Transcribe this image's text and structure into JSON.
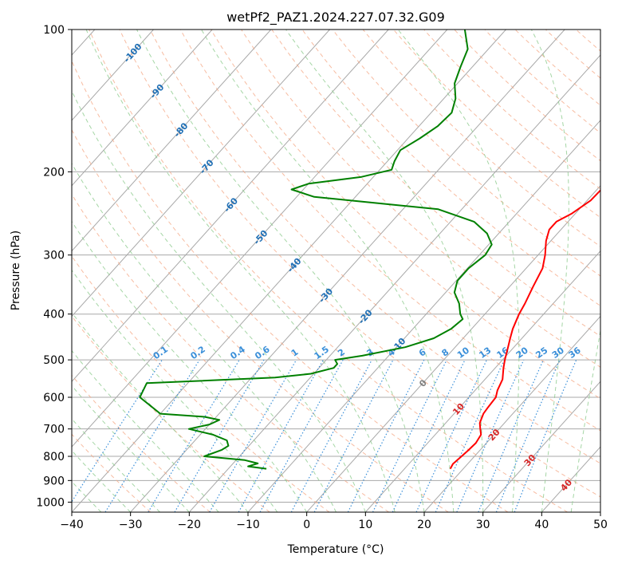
{
  "chart_data": {
    "type": "skew-t",
    "title": "wetPf2_PAZ1.2024.227.07.32.G09",
    "xlabel": "Temperature (°C)",
    "ylabel": "Pressure (hPa)",
    "xlim": [
      -40,
      50
    ],
    "ylim": [
      1050,
      100
    ],
    "y_scale": "log",
    "grid": true,
    "x_ticks": [
      "−40",
      "−30",
      "−20",
      "−10",
      "0",
      "10",
      "20",
      "30",
      "40",
      "50"
    ],
    "y_ticks": [
      "100",
      "200",
      "300",
      "400",
      "500",
      "600",
      "700",
      "800",
      "900",
      "1000"
    ],
    "series": [
      {
        "color": "#ff0000",
        "points": [
          [
            850,
            17.8
          ],
          [
            830,
            17.5
          ],
          [
            800,
            17.8
          ],
          [
            780,
            18.0
          ],
          [
            750,
            18.2
          ],
          [
            720,
            17.8
          ],
          [
            700,
            16.8
          ],
          [
            680,
            15.8
          ],
          [
            650,
            15.0
          ],
          [
            630,
            14.8
          ],
          [
            600,
            14.6
          ],
          [
            580,
            13.8
          ],
          [
            550,
            13.0
          ],
          [
            520,
            11.4
          ],
          [
            500,
            10.4
          ],
          [
            470,
            9.0
          ],
          [
            450,
            8.0
          ],
          [
            430,
            7.0
          ],
          [
            400,
            5.8
          ],
          [
            380,
            5.2
          ],
          [
            350,
            4.0
          ],
          [
            320,
            2.8
          ],
          [
            300,
            1.2
          ],
          [
            280,
            -0.8
          ],
          [
            265,
            -2.0
          ],
          [
            255,
            -2.0
          ],
          [
            245,
            -0.6
          ],
          [
            230,
            0.6
          ],
          [
            210,
            0.8
          ],
          [
            195,
            0.0
          ],
          [
            180,
            -0.8
          ],
          [
            165,
            -2.2
          ],
          [
            150,
            -3.6
          ],
          [
            140,
            -4.4
          ],
          [
            130,
            -5.0
          ],
          [
            120,
            -5.8
          ],
          [
            110,
            -6.8
          ],
          [
            100,
            -7.8
          ]
        ]
      },
      {
        "color": "#008000",
        "points": [
          [
            850,
            -13.5
          ],
          [
            840,
            -17.0
          ],
          [
            828,
            -15.8
          ],
          [
            815,
            -18.5
          ],
          [
            800,
            -26.0
          ],
          [
            775,
            -24.0
          ],
          [
            760,
            -23.5
          ],
          [
            740,
            -24.6
          ],
          [
            720,
            -27.8
          ],
          [
            700,
            -32.8
          ],
          [
            685,
            -30.0
          ],
          [
            670,
            -29.0
          ],
          [
            660,
            -32.0
          ],
          [
            650,
            -40.0
          ],
          [
            600,
            -46.0
          ],
          [
            560,
            -47.0
          ],
          [
            545,
            -26.0
          ],
          [
            535,
            -20.5
          ],
          [
            520,
            -17.5
          ],
          [
            510,
            -17.5
          ],
          [
            500,
            -18.5
          ],
          [
            490,
            -14.5
          ],
          [
            470,
            -8.5
          ],
          [
            450,
            -5.0
          ],
          [
            430,
            -3.5
          ],
          [
            410,
            -3.0
          ],
          [
            400,
            -4.2
          ],
          [
            380,
            -6.0
          ],
          [
            360,
            -8.5
          ],
          [
            340,
            -9.8
          ],
          [
            320,
            -9.8
          ],
          [
            300,
            -9.0
          ],
          [
            285,
            -9.5
          ],
          [
            270,
            -12.0
          ],
          [
            255,
            -16.0
          ],
          [
            240,
            -24.0
          ],
          [
            232,
            -37.0
          ],
          [
            226,
            -47.0
          ],
          [
            218,
            -52.0
          ],
          [
            212,
            -50.0
          ],
          [
            205,
            -42.0
          ],
          [
            198,
            -38.0
          ],
          [
            190,
            -38.8
          ],
          [
            180,
            -39.5
          ],
          [
            170,
            -38.0
          ],
          [
            160,
            -36.8
          ],
          [
            150,
            -36.5
          ],
          [
            140,
            -38.0
          ],
          [
            130,
            -40.5
          ],
          [
            120,
            -42.0
          ],
          [
            110,
            -43.5
          ],
          [
            100,
            -47.0
          ]
        ]
      }
    ],
    "isotherm_labels": [
      "-100",
      "-90",
      "-80",
      "-70",
      "-60",
      "-50",
      "-40",
      "-30",
      "-20",
      "-10",
      "0",
      "10",
      "20",
      "30",
      "40"
    ],
    "mixing_ratio_labels": [
      "0.1",
      "0.2",
      "0.4",
      "0.6",
      "1",
      "1.5",
      "2",
      "3",
      "4",
      "6",
      "8",
      "10",
      "13",
      "16",
      "20",
      "25",
      "30",
      "36"
    ],
    "colors": {
      "temperature": "#ff0000",
      "dewpoint": "#008000",
      "isotherm": "#a8a8a8",
      "dry_adiabat": "#f4a582",
      "moist_adiabat": "#8fcc8f",
      "mixing_ratio": "#3a8fd9",
      "isotherm_label_cold": "#1f6fb5",
      "isotherm_label_warm": "#d62728",
      "zero_label": "#808080"
    }
  }
}
